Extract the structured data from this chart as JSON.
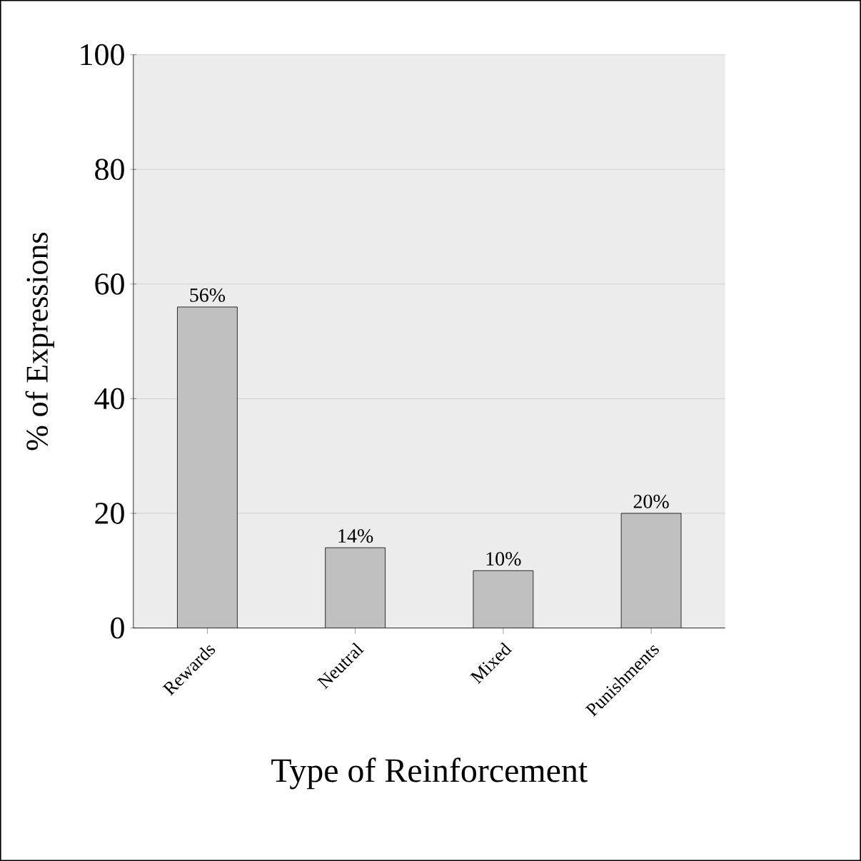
{
  "chart_data": {
    "type": "bar",
    "xlabel": "Type of Reinforcement",
    "ylabel": "% of Expressions",
    "categories": [
      "Rewards",
      "Neutral",
      "Mixed",
      "Punishments"
    ],
    "values": [
      56,
      14,
      10,
      20
    ],
    "value_labels": [
      "56%",
      "14%",
      "10%",
      "20%"
    ],
    "color": "#c0c0c0",
    "ylim": [
      0,
      100
    ],
    "yticks": [
      0,
      20,
      40,
      60,
      80,
      100
    ],
    "grid": "y"
  }
}
